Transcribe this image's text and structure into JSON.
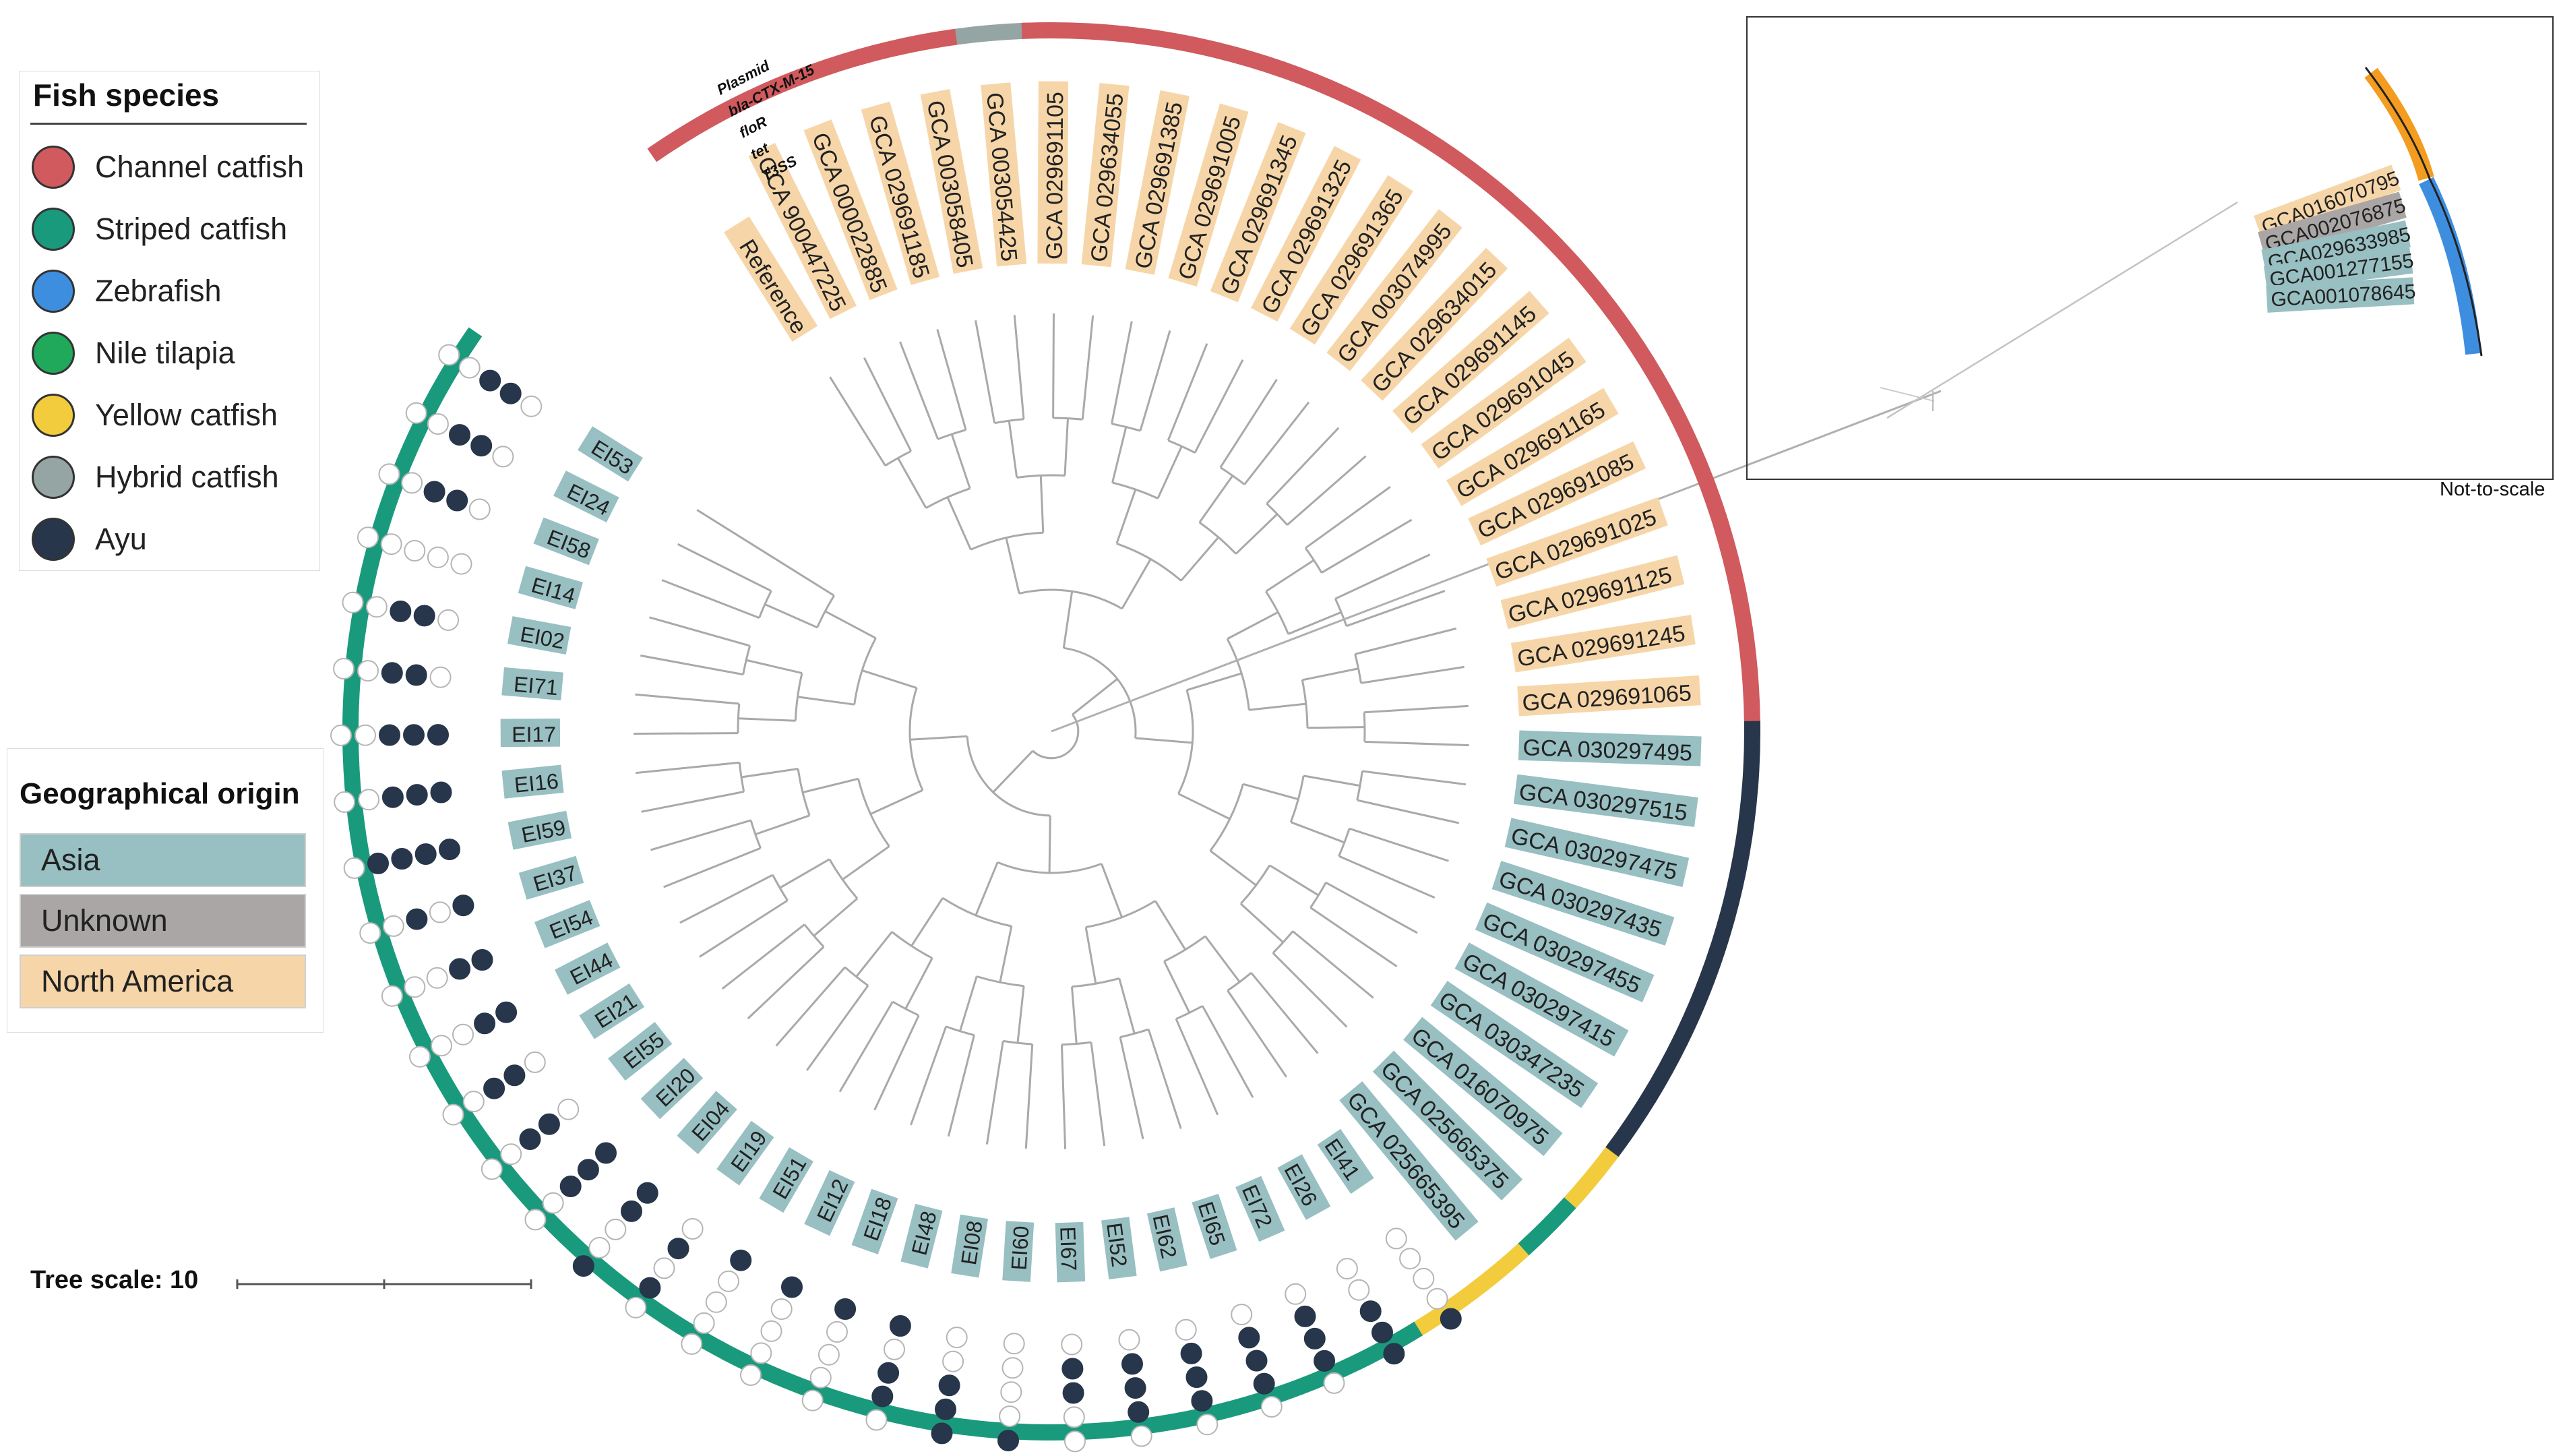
{
  "fish_legend": {
    "title": "Fish species",
    "items": [
      {
        "label": "Channel catfish",
        "color": "#d05a5d"
      },
      {
        "label": "Striped catfish",
        "color": "#1a9a7d"
      },
      {
        "label": "Zebrafish",
        "color": "#3e8ee0"
      },
      {
        "label": "Nile tilapia",
        "color": "#20a95a"
      },
      {
        "label": "Yellow catfish",
        "color": "#f2cc3d"
      },
      {
        "label": "Hybrid catfish",
        "color": "#95a5a3"
      },
      {
        "label": "Ayu",
        "color": "#27364a"
      }
    ]
  },
  "geo_legend": {
    "title": "Geographical origin",
    "items": [
      {
        "label": "Asia",
        "color": "#98bfc2"
      },
      {
        "label": "Unknown",
        "color": "#aaa6a6"
      },
      {
        "label": "North America",
        "color": "#f6d6a8"
      }
    ]
  },
  "tree_scale": {
    "label": "Tree scale: 10"
  },
  "inset": {
    "note": "Not-to-scale",
    "labels": [
      {
        "text": "GCA016070795",
        "origin": "North America"
      },
      {
        "text": "GCA002076875",
        "origin": "Unknown"
      },
      {
        "text": "GCA029633985",
        "origin": "Asia"
      },
      {
        "text": "GCA001277155",
        "origin": "Asia"
      },
      {
        "text": "GCA001078645",
        "origin": "Asia"
      }
    ]
  },
  "trait_headers": [
    "T3SS",
    "tet",
    "floR",
    "bla-CTX-M-15",
    "Plasmid"
  ],
  "colors": {
    "filled_dot": "#27364a",
    "empty_dot_stroke": "#b5b5b5",
    "branch": "#a9a9a9"
  },
  "leaves": [
    {
      "label": "Reference",
      "origin": "North America",
      "host": "Channel catfish",
      "traits": []
    },
    {
      "label": "GCA 900447225",
      "origin": "North America",
      "host": "Channel catfish",
      "traits": []
    },
    {
      "label": "GCA 000022885",
      "origin": "North America",
      "host": "Channel catfish",
      "traits": []
    },
    {
      "label": "GCA 029691185",
      "origin": "North America",
      "host": "Channel catfish",
      "traits": []
    },
    {
      "label": "GCA 003058405",
      "origin": "North America",
      "host": "Channel catfish",
      "traits": []
    },
    {
      "label": "GCA 003054425",
      "origin": "North America",
      "host": "Hybrid catfish",
      "traits": []
    },
    {
      "label": "GCA 029691105",
      "origin": "North America",
      "host": "Channel catfish",
      "traits": []
    },
    {
      "label": "GCA 029634055",
      "origin": "North America",
      "host": "Channel catfish",
      "traits": []
    },
    {
      "label": "GCA 029691385",
      "origin": "North America",
      "host": "Channel catfish",
      "traits": []
    },
    {
      "label": "GCA 029691005",
      "origin": "North America",
      "host": "Channel catfish",
      "traits": []
    },
    {
      "label": "GCA 029691345",
      "origin": "North America",
      "host": "Channel catfish",
      "traits": []
    },
    {
      "label": "GCA 029691325",
      "origin": "North America",
      "host": "Channel catfish",
      "traits": []
    },
    {
      "label": "GCA 029691365",
      "origin": "North America",
      "host": "Channel catfish",
      "traits": []
    },
    {
      "label": "GCA 003074995",
      "origin": "North America",
      "host": "Channel catfish",
      "traits": []
    },
    {
      "label": "GCA 029634015",
      "origin": "North America",
      "host": "Channel catfish",
      "traits": []
    },
    {
      "label": "GCA 029691145",
      "origin": "North America",
      "host": "Channel catfish",
      "traits": []
    },
    {
      "label": "GCA 029691045",
      "origin": "North America",
      "host": "Channel catfish",
      "traits": []
    },
    {
      "label": "GCA 029691165",
      "origin": "North America",
      "host": "Channel catfish",
      "traits": []
    },
    {
      "label": "GCA 029691085",
      "origin": "North America",
      "host": "Channel catfish",
      "traits": []
    },
    {
      "label": "GCA 029691025",
      "origin": "North America",
      "host": "Channel catfish",
      "traits": []
    },
    {
      "label": "GCA 029691125",
      "origin": "North America",
      "host": "Channel catfish",
      "traits": []
    },
    {
      "label": "GCA 029691245",
      "origin": "North America",
      "host": "Channel catfish",
      "traits": []
    },
    {
      "label": "GCA 029691065",
      "origin": "North America",
      "host": "Channel catfish",
      "traits": []
    },
    {
      "label": "GCA 030297495",
      "origin": "Asia",
      "host": "Ayu",
      "traits": []
    },
    {
      "label": "GCA 030297515",
      "origin": "Asia",
      "host": "Ayu",
      "traits": []
    },
    {
      "label": "GCA 030297475",
      "origin": "Asia",
      "host": "Ayu",
      "traits": []
    },
    {
      "label": "GCA 030297435",
      "origin": "Asia",
      "host": "Ayu",
      "traits": []
    },
    {
      "label": "GCA 030297455",
      "origin": "Asia",
      "host": "Ayu",
      "traits": []
    },
    {
      "label": "GCA 030297415",
      "origin": "Asia",
      "host": "Ayu",
      "traits": []
    },
    {
      "label": "GCA 030347235",
      "origin": "Asia",
      "host": "Ayu",
      "traits": []
    },
    {
      "label": "GCA 016070975",
      "origin": "Asia",
      "host": "Yellow catfish",
      "traits": []
    },
    {
      "label": "GCA 025665375",
      "origin": "Asia",
      "host": "Striped catfish",
      "traits": []
    },
    {
      "label": "GCA 025665395",
      "origin": "Asia",
      "host": "Yellow catfish",
      "traits": []
    },
    {
      "label": "EI41",
      "origin": "Asia",
      "host": "Yellow catfish",
      "traits": [
        0,
        0,
        0,
        0,
        1
      ]
    },
    {
      "label": "EI26",
      "origin": "Asia",
      "host": "Striped catfish",
      "traits": [
        0,
        0,
        1,
        1,
        1
      ]
    },
    {
      "label": "EI72",
      "origin": "Asia",
      "host": "Striped catfish",
      "traits": [
        0,
        1,
        1,
        1,
        0
      ]
    },
    {
      "label": "EI65",
      "origin": "Asia",
      "host": "Striped catfish",
      "traits": [
        0,
        1,
        1,
        1,
        0
      ]
    },
    {
      "label": "EI62",
      "origin": "Asia",
      "host": "Striped catfish",
      "traits": [
        0,
        1,
        1,
        1,
        0
      ]
    },
    {
      "label": "EI52",
      "origin": "Asia",
      "host": "Striped catfish",
      "traits": [
        0,
        1,
        1,
        1,
        0
      ]
    },
    {
      "label": "EI67",
      "origin": "Asia",
      "host": "Striped catfish",
      "traits": [
        0,
        1,
        1,
        0,
        0
      ]
    },
    {
      "label": "EI60",
      "origin": "Asia",
      "host": "Striped catfish",
      "traits": [
        0,
        0,
        0,
        0,
        1
      ]
    },
    {
      "label": "EI08",
      "origin": "Asia",
      "host": "Striped catfish",
      "traits": [
        0,
        0,
        1,
        1,
        1
      ]
    },
    {
      "label": "EI48",
      "origin": "Asia",
      "host": "Striped catfish",
      "traits": [
        1,
        0,
        1,
        1,
        0
      ]
    },
    {
      "label": "EI18",
      "origin": "Asia",
      "host": "Striped catfish",
      "traits": [
        1,
        0,
        0,
        0,
        0
      ]
    },
    {
      "label": "EI12",
      "origin": "Asia",
      "host": "Striped catfish",
      "traits": [
        1,
        0,
        0,
        0,
        0
      ]
    },
    {
      "label": "EI51",
      "origin": "Asia",
      "host": "Striped catfish",
      "traits": [
        1,
        0,
        0,
        0,
        0
      ]
    },
    {
      "label": "EI19",
      "origin": "Asia",
      "host": "Striped catfish",
      "traits": [
        0,
        1,
        0,
        1,
        0
      ]
    },
    {
      "label": "EI04",
      "origin": "Asia",
      "host": "Striped catfish",
      "traits": [
        1,
        1,
        0,
        0,
        1
      ]
    },
    {
      "label": "EI20",
      "origin": "Asia",
      "host": "Striped catfish",
      "traits": [
        1,
        1,
        1,
        0,
        0
      ]
    },
    {
      "label": "EI55",
      "origin": "Asia",
      "host": "Striped catfish",
      "traits": [
        0,
        1,
        1,
        0,
        0
      ]
    },
    {
      "label": "EI21",
      "origin": "Asia",
      "host": "Striped catfish",
      "traits": [
        0,
        1,
        1,
        0,
        0
      ]
    },
    {
      "label": "EI44",
      "origin": "Asia",
      "host": "Striped catfish",
      "traits": [
        1,
        1,
        0,
        0,
        0
      ]
    },
    {
      "label": "EI54",
      "origin": "Asia",
      "host": "Striped catfish",
      "traits": [
        1,
        1,
        0,
        0,
        0
      ]
    },
    {
      "label": "EI37",
      "origin": "Asia",
      "host": "Striped catfish",
      "traits": [
        1,
        0,
        1,
        0,
        0
      ]
    },
    {
      "label": "EI59",
      "origin": "Asia",
      "host": "Striped catfish",
      "traits": [
        1,
        1,
        1,
        1,
        0
      ]
    },
    {
      "label": "EI16",
      "origin": "Asia",
      "host": "Striped catfish",
      "traits": [
        1,
        1,
        1,
        0,
        0
      ]
    },
    {
      "label": "EI17",
      "origin": "Asia",
      "host": "Striped catfish",
      "traits": [
        1,
        1,
        1,
        0,
        0
      ]
    },
    {
      "label": "EI71",
      "origin": "Asia",
      "host": "Striped catfish",
      "traits": [
        0,
        1,
        1,
        0,
        0
      ]
    },
    {
      "label": "EI02",
      "origin": "Asia",
      "host": "Striped catfish",
      "traits": [
        0,
        1,
        1,
        0,
        0
      ]
    },
    {
      "label": "EI14",
      "origin": "Asia",
      "host": "Striped catfish",
      "traits": [
        0,
        0,
        0,
        0,
        0
      ]
    },
    {
      "label": "EI58",
      "origin": "Asia",
      "host": "Striped catfish",
      "traits": [
        0,
        1,
        1,
        0,
        0
      ]
    },
    {
      "label": "EI24",
      "origin": "Asia",
      "host": "Striped catfish",
      "traits": [
        0,
        1,
        1,
        0,
        0
      ]
    },
    {
      "label": "EI53",
      "origin": "Asia",
      "host": "Striped catfish",
      "traits": [
        0,
        1,
        1,
        0,
        0
      ]
    }
  ]
}
